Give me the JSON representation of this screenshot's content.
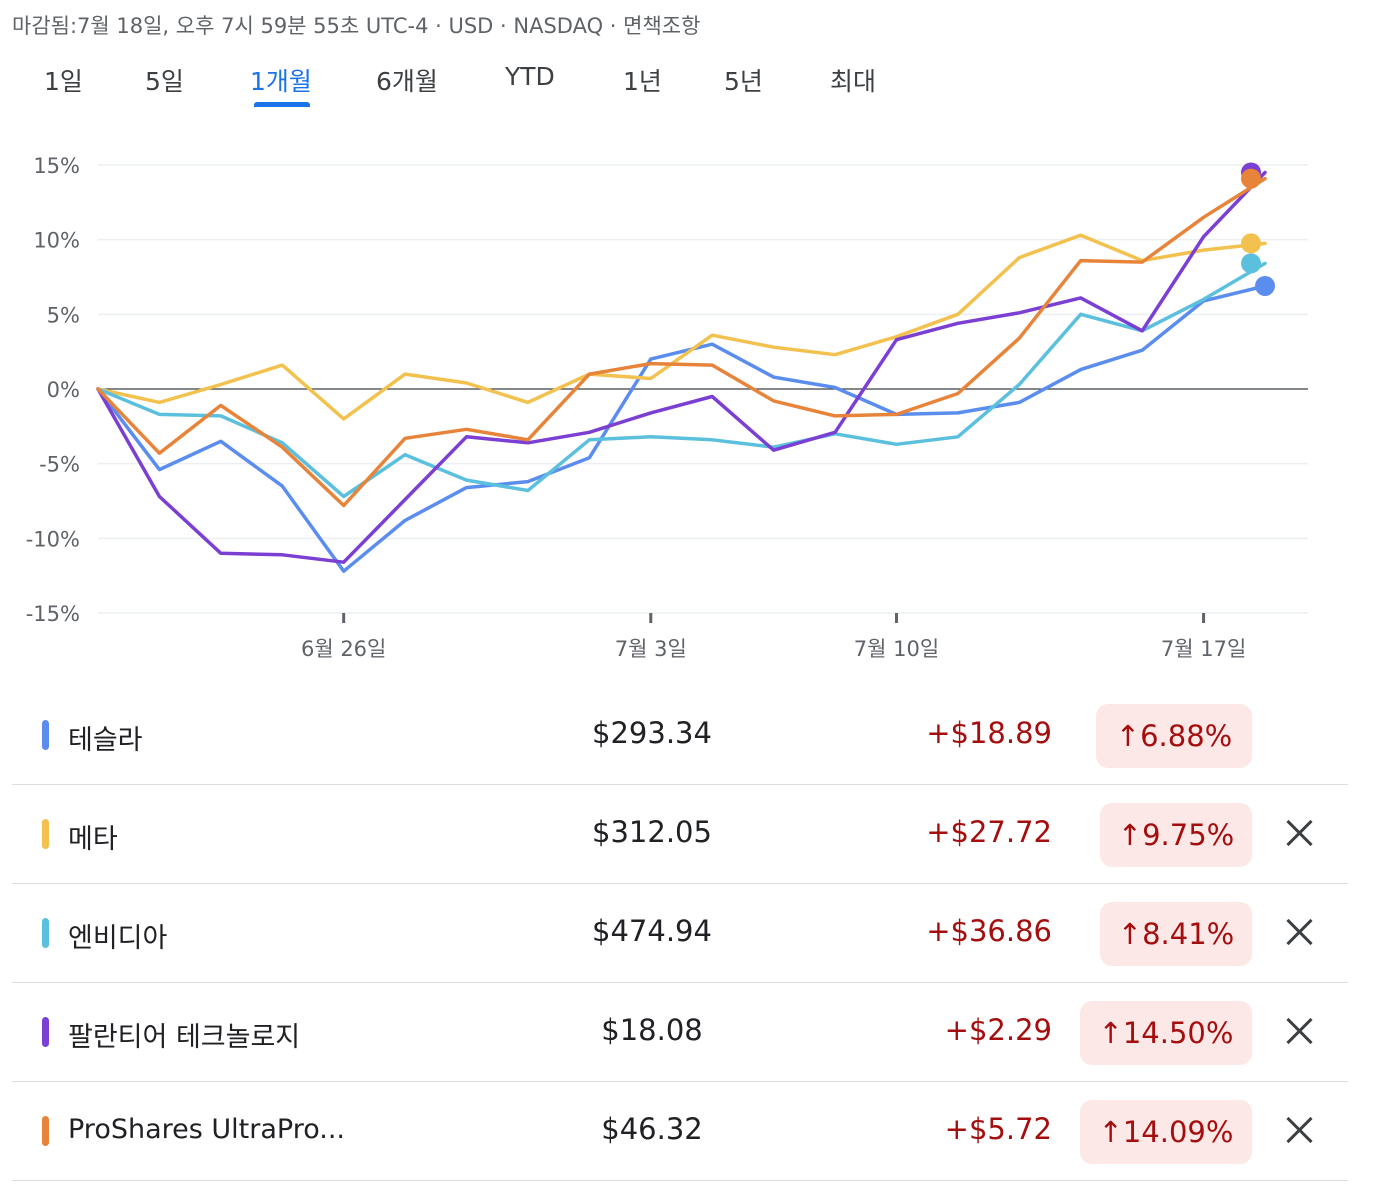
{
  "header": {
    "status_line": "마감됨:7월 18일, 오후 7시 59분 55초 UTC-4 · USD · NASDAQ · 면책조항"
  },
  "tabs": [
    {
      "label": "1일"
    },
    {
      "label": "5일"
    },
    {
      "label": "1개월",
      "active": true
    },
    {
      "label": "6개월"
    },
    {
      "label": "YTD"
    },
    {
      "label": "1년"
    },
    {
      "label": "5년"
    },
    {
      "label": "최대"
    }
  ],
  "colors": {
    "accent": "#1a73e8",
    "tesla": "#5b8def",
    "meta": "#f2c14e",
    "nvidia": "#5bc0de",
    "palantir": "#7b3fd4",
    "proshares": "#e8843a",
    "gain": "#a50e0e",
    "gain_bg": "#fce8e6"
  },
  "chart_data": {
    "type": "line",
    "title": "",
    "xlabel": "",
    "ylabel": "",
    "ylim": [
      -15,
      15
    ],
    "yticks": [
      15,
      10,
      5,
      0,
      -5,
      -10,
      -15
    ],
    "ytick_labels": [
      "15%",
      "10%",
      "5%",
      "0%",
      "-5%",
      "-10%",
      "-15%"
    ],
    "x_range": [
      0,
      19.7
    ],
    "xticks": [
      4,
      9,
      13,
      18
    ],
    "xtick_labels": [
      "6월 26일",
      "7월 3일",
      "7월 10일",
      "7월 17일"
    ],
    "x": [
      0,
      1,
      2,
      3,
      4,
      5,
      6,
      7,
      8,
      9,
      10,
      11,
      12,
      13,
      14,
      15,
      16,
      17,
      18,
      19
    ],
    "series": [
      {
        "name": "테슬라",
        "color": "#5b8def",
        "values": [
          0,
          -5.4,
          -3.5,
          -6.5,
          -12.2,
          -8.8,
          -6.6,
          -6.2,
          -4.6,
          2.0,
          3.0,
          0.8,
          0.1,
          -1.7,
          -1.6,
          -0.9,
          1.3,
          2.6,
          5.9,
          6.9
        ]
      },
      {
        "name": "메타",
        "color": "#f2c14e",
        "values": [
          0,
          -0.9,
          0.3,
          1.6,
          -2.0,
          1.0,
          0.4,
          -0.9,
          1.0,
          0.7,
          3.6,
          2.8,
          2.3,
          3.5,
          5.0,
          8.8,
          10.3,
          8.6,
          9.3,
          9.75
        ]
      },
      {
        "name": "엔비디아",
        "color": "#5bc0de",
        "values": [
          0,
          -1.7,
          -1.8,
          -3.6,
          -7.2,
          -4.4,
          -6.1,
          -6.8,
          -3.4,
          -3.2,
          -3.4,
          -3.9,
          -3.0,
          -3.7,
          -3.2,
          0.3,
          5.0,
          3.9,
          6.0,
          8.41
        ]
      },
      {
        "name": "팔란티어 테크놀로지",
        "color": "#7b3fd4",
        "values": [
          0,
          -7.2,
          -11.0,
          -11.1,
          -11.6,
          -7.4,
          -3.2,
          -3.6,
          -2.9,
          -1.6,
          -0.5,
          -4.1,
          -2.9,
          3.3,
          4.4,
          5.1,
          6.1,
          3.9,
          10.2,
          14.5
        ]
      },
      {
        "name": "ProShares UltraPro...",
        "color": "#e8843a",
        "values": [
          0,
          -4.3,
          -1.1,
          -3.9,
          -7.8,
          -3.3,
          -2.7,
          -3.4,
          1.0,
          1.7,
          1.6,
          -0.8,
          -1.8,
          -1.7,
          -0.3,
          3.4,
          8.6,
          8.5,
          11.5,
          14.09
        ]
      }
    ]
  },
  "stocks": [
    {
      "name": "테슬라",
      "price": "$293.34",
      "change": "+$18.89",
      "pct": "↑6.88%",
      "color": "#5b8def",
      "removable": false
    },
    {
      "name": "메타",
      "price": "$312.05",
      "change": "+$27.72",
      "pct": "↑9.75%",
      "color": "#f2c14e",
      "removable": true
    },
    {
      "name": "엔비디아",
      "price": "$474.94",
      "change": "+$36.86",
      "pct": "↑8.41%",
      "color": "#5bc0de",
      "removable": true
    },
    {
      "name": "팔란티어 테크놀로지",
      "price": "$18.08",
      "change": "+$2.29",
      "pct": "↑14.50%",
      "color": "#7b3fd4",
      "removable": true
    },
    {
      "name": "ProShares UltraPro...",
      "price": "$46.32",
      "change": "+$5.72",
      "pct": "↑14.09%",
      "color": "#e8843a",
      "removable": true
    }
  ]
}
